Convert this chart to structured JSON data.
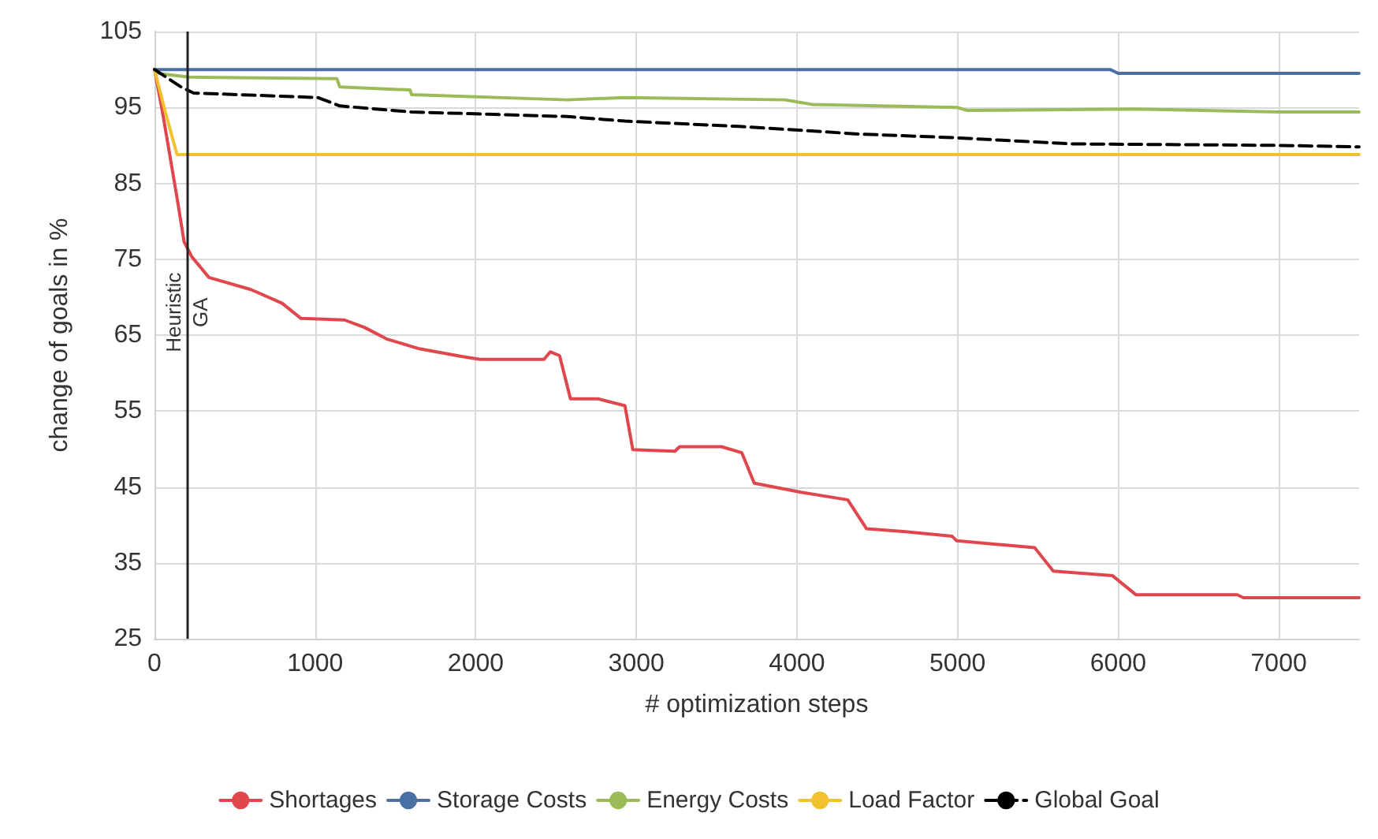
{
  "chart_data": {
    "type": "line",
    "xlabel": "# optimization steps",
    "ylabel": "change of goals in %",
    "xlim": [
      0,
      7500
    ],
    "xticks": [
      0,
      1000,
      2000,
      3000,
      4000,
      5000,
      6000,
      7000
    ],
    "ylim": [
      25,
      105
    ],
    "yticks": [
      25,
      35,
      45,
      55,
      65,
      75,
      85,
      95,
      105
    ],
    "grid": true,
    "legend": "bottom",
    "marker": "none",
    "ref_lines": [
      {
        "axis": "x",
        "value": 200,
        "color": "#222222",
        "line_style": "solid"
      }
    ],
    "annotations": [
      {
        "text": "Heuristic",
        "x": 200,
        "y": 68
      },
      {
        "text": "GA",
        "x": 200,
        "y": 68
      }
    ],
    "series": [
      {
        "name": "Shortages",
        "color": "#e0474c",
        "x": [
          0,
          48,
          145,
          184,
          233,
          339,
          601,
          795,
          912,
          1183,
          1309,
          1445,
          1649,
          1911,
          2027,
          2425,
          2464,
          2522,
          2590,
          2764,
          2929,
          2978,
          3240,
          3269,
          3531,
          3657,
          3734,
          4025,
          4316,
          4433,
          4675,
          4966,
          4995,
          5480,
          5596,
          5965,
          6110,
          6741,
          6780,
          7500
        ],
        "values": [
          100,
          94.6,
          82.5,
          77.3,
          75.3,
          72.6,
          71,
          69.2,
          67.2,
          67,
          66,
          64.5,
          63.2,
          62.2,
          61.8,
          61.8,
          62.8,
          62.3,
          56.6,
          56.6,
          55.7,
          49.9,
          49.7,
          50.3,
          50.3,
          49.5,
          45.5,
          44.3,
          43.3,
          39.5,
          39.1,
          38.5,
          37.9,
          37,
          33.9,
          33.3,
          30.8,
          30.8,
          30.4,
          30.4
        ]
      },
      {
        "name": "Storage Costs",
        "color": "#4a6fa5",
        "x": [
          0,
          5950,
          6000,
          7500
        ],
        "values": [
          100,
          100,
          99.5,
          99.5
        ]
      },
      {
        "name": "Energy Costs",
        "color": "#9bbb59",
        "x": [
          0,
          19,
          213,
          1135,
          1154,
          1591,
          1600,
          2570,
          2929,
          3928,
          4093,
          4995,
          5063,
          6101,
          7003,
          7500
        ],
        "values": [
          100,
          99.5,
          99,
          98.8,
          97.7,
          97.3,
          96.7,
          96,
          96.3,
          96,
          95.4,
          95,
          94.6,
          94.8,
          94.4,
          94.4
        ]
      },
      {
        "name": "Load Factor",
        "color": "#f2c12e",
        "x": [
          0,
          60,
          140,
          7500
        ],
        "values": [
          100,
          95,
          88.8,
          88.8
        ]
      },
      {
        "name": "Global Goal",
        "color": "#000000",
        "line_style": "dashed",
        "x": [
          0,
          165,
          243,
          1018,
          1154,
          1600,
          2570,
          2929,
          3637,
          4384,
          4995,
          5713,
          7003,
          7500
        ],
        "values": [
          100,
          97.7,
          96.9,
          96.3,
          95.2,
          94.4,
          93.8,
          93.2,
          92.5,
          91.5,
          91,
          90.2,
          90,
          89.8
        ]
      }
    ]
  }
}
